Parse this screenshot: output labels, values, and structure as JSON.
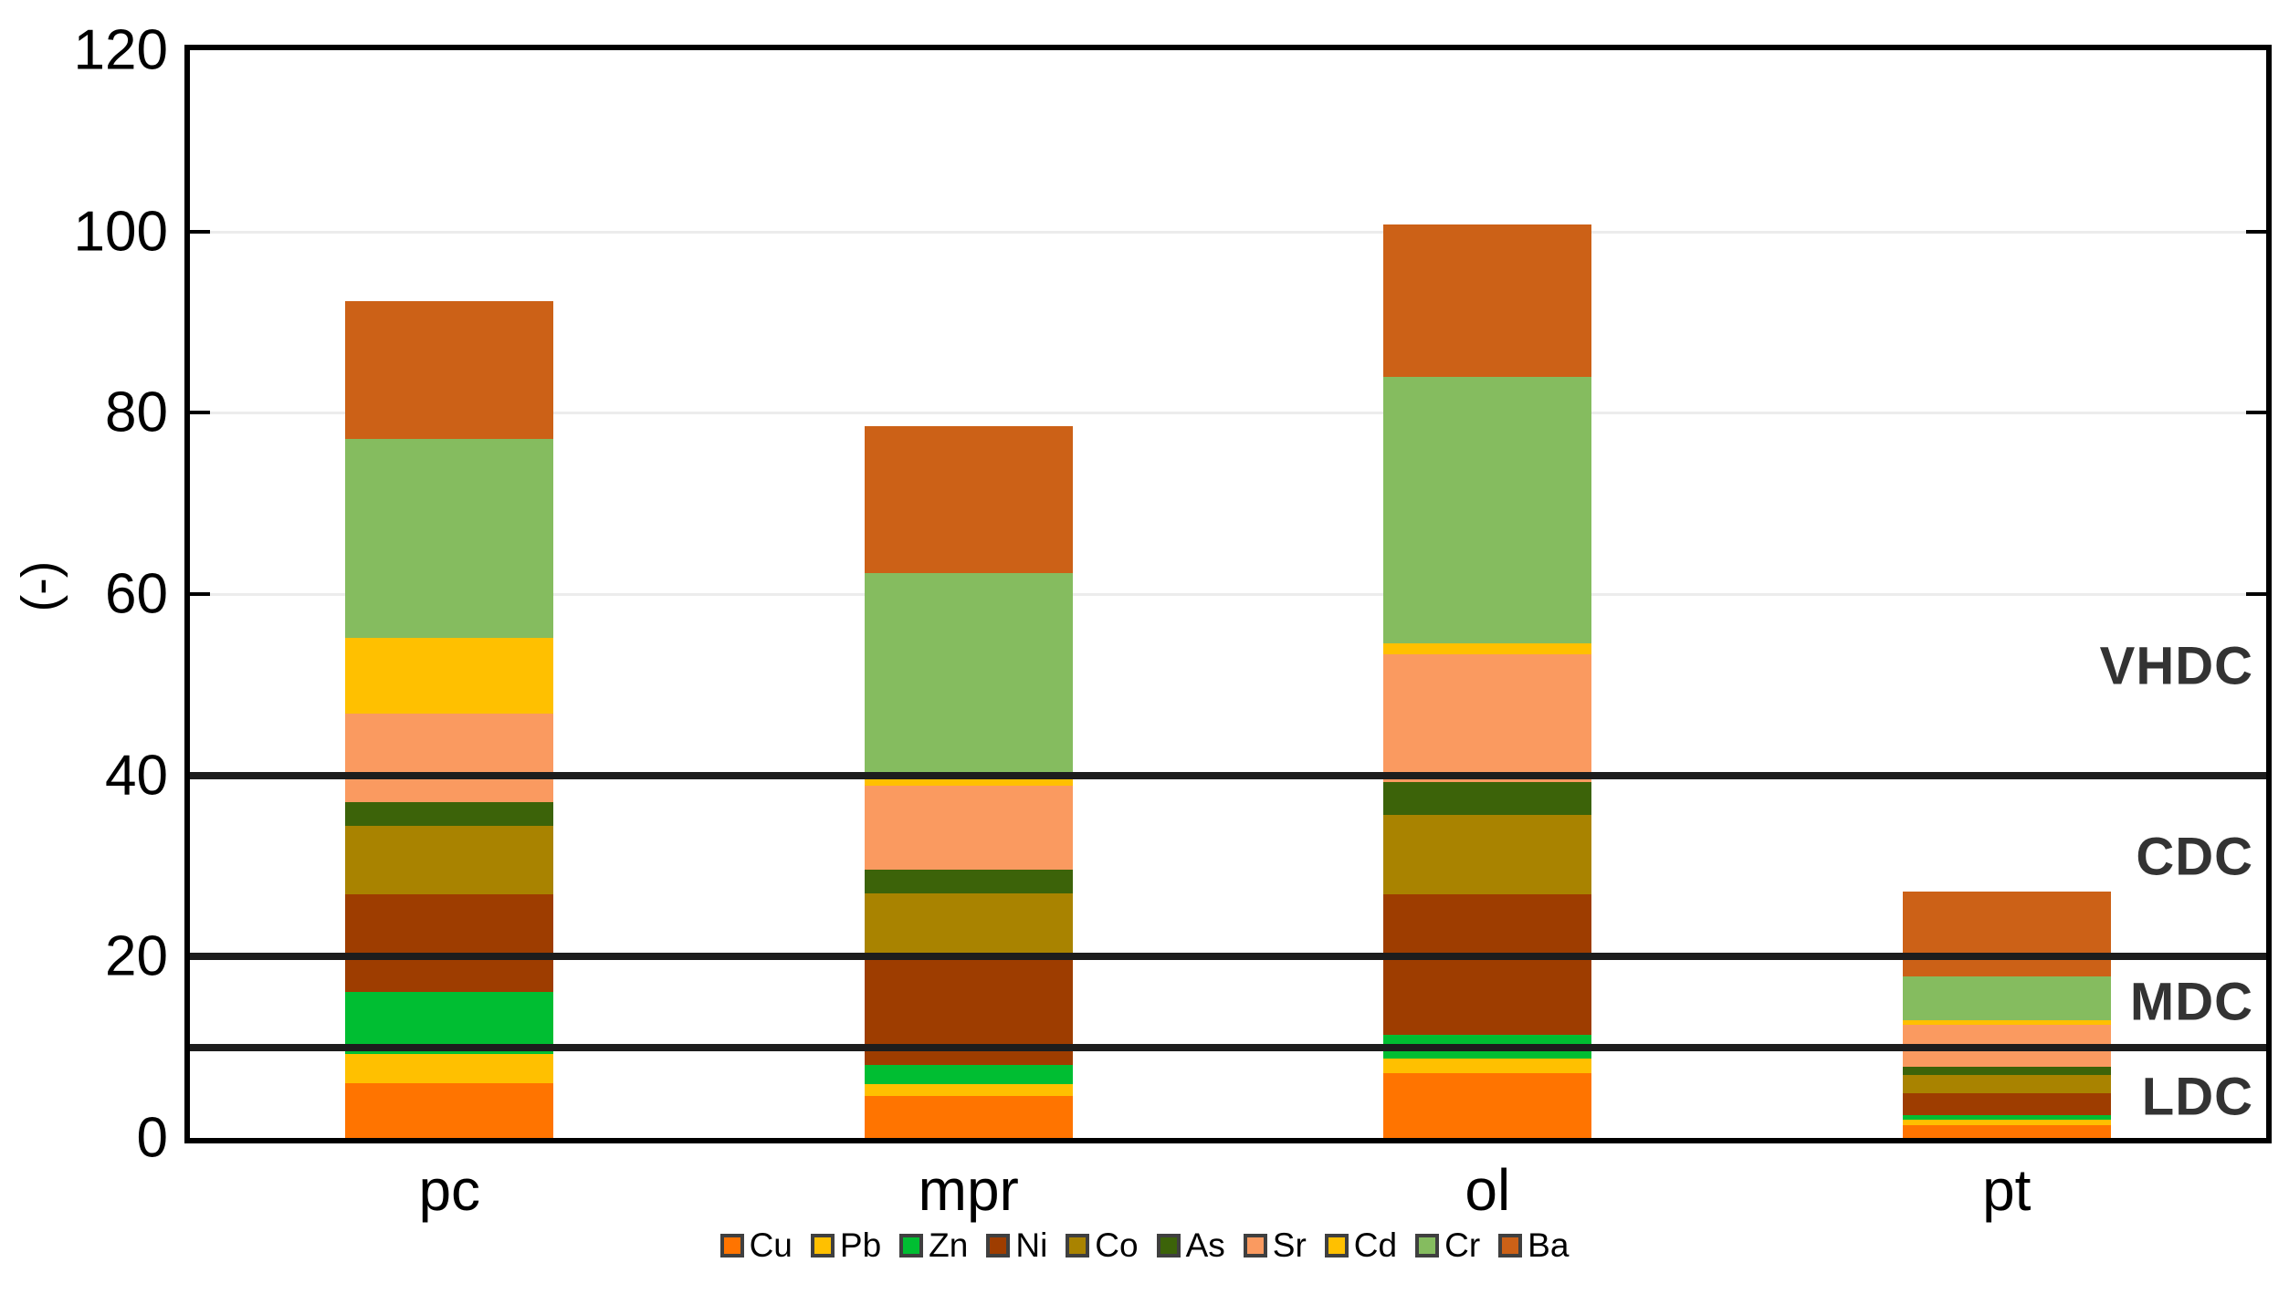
{
  "chart_data": {
    "type": "bar",
    "stacked": true,
    "title": "",
    "xlabel": "",
    "ylabel": "(-)",
    "ylim": [
      0,
      120
    ],
    "yticks": [
      0,
      20,
      40,
      60,
      80,
      100,
      120
    ],
    "grid": true,
    "legend_position": "bottom",
    "categories": [
      "pc",
      "mpr",
      "ol",
      "pt"
    ],
    "series": [
      {
        "name": "Cu",
        "color": "#FF7400",
        "values": [
          6.0,
          4.6,
          7.1,
          1.4
        ]
      },
      {
        "name": "Pb",
        "color": "#FFC000",
        "values": [
          3.3,
          1.3,
          1.7,
          0.6
        ]
      },
      {
        "name": "Zn",
        "color": "#00BE32",
        "values": [
          6.8,
          2.2,
          2.6,
          0.5
        ]
      },
      {
        "name": "Ni",
        "color": "#9E3D00",
        "values": [
          10.8,
          12.2,
          15.5,
          2.4
        ]
      },
      {
        "name": "Co",
        "color": "#A98300",
        "values": [
          7.5,
          6.7,
          8.7,
          2.0
        ]
      },
      {
        "name": "As",
        "color": "#3C6309",
        "values": [
          2.6,
          2.6,
          3.7,
          1.0
        ]
      },
      {
        "name": "Sr",
        "color": "#FA9A60",
        "values": [
          9.8,
          9.3,
          14.1,
          4.6
        ]
      },
      {
        "name": "Cd",
        "color": "#FFC000",
        "values": [
          8.4,
          1.3,
          1.2,
          0.5
        ]
      },
      {
        "name": "Cr",
        "color": "#85BC5F",
        "values": [
          21.9,
          22.1,
          29.4,
          4.8
        ]
      },
      {
        "name": "Ba",
        "color": "#CC6117",
        "values": [
          15.2,
          16.2,
          16.8,
          9.4
        ]
      }
    ],
    "totals": [
      92.3,
      78.5,
      100.8,
      27.2
    ],
    "threshold_lines": [
      {
        "value": 10
      },
      {
        "value": 20
      },
      {
        "value": 40
      }
    ],
    "zone_labels": [
      {
        "text": "VHDC",
        "value": 52
      },
      {
        "text": "CDC",
        "value": 31
      },
      {
        "text": "MDC",
        "value": 15
      },
      {
        "text": "LDC",
        "value": 4.5
      }
    ]
  },
  "colors": {
    "background": "#ffffff",
    "axis": "#000000",
    "gridline": "#ececec",
    "threshold_line": "#1d1d1d",
    "zone_label_text": "#333333"
  }
}
